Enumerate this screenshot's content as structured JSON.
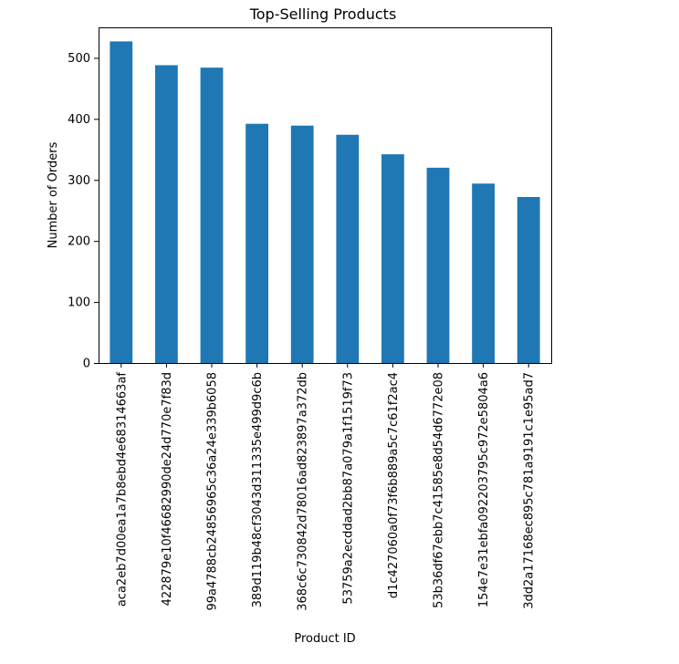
{
  "chart_data": {
    "type": "bar",
    "title": "Top-Selling Products",
    "xlabel": "Product ID",
    "ylabel": "Number of Orders",
    "ylim": [
      0,
      550
    ],
    "yticks": [
      0,
      100,
      200,
      300,
      400,
      500
    ],
    "grid": false,
    "legend": false,
    "bar_color": "#1f77b4",
    "categories": [
      "aca2eb7d00ea1a7b8ebd4e68314663af",
      "422879e10f46682990de24d770e7f83d",
      "99a4788cb24856965c36a24e339b6058",
      "389d119b48cf3043d311335e499d9c6b",
      "368c6c730842d78016ad823897a372db",
      "53759a2ecddad2bb87a079a1f1519f73",
      "d1c427060a0f73f6b889a5c7c61f2ac4",
      "53b36df67ebb7c41585e8d54d6772e08",
      "154e7e31ebfa092203795c972e5804a6",
      "3dd2a17168ec895c781a9191c1e95ad7"
    ],
    "values": [
      527,
      488,
      484,
      392,
      389,
      374,
      342,
      320,
      294,
      272
    ]
  }
}
